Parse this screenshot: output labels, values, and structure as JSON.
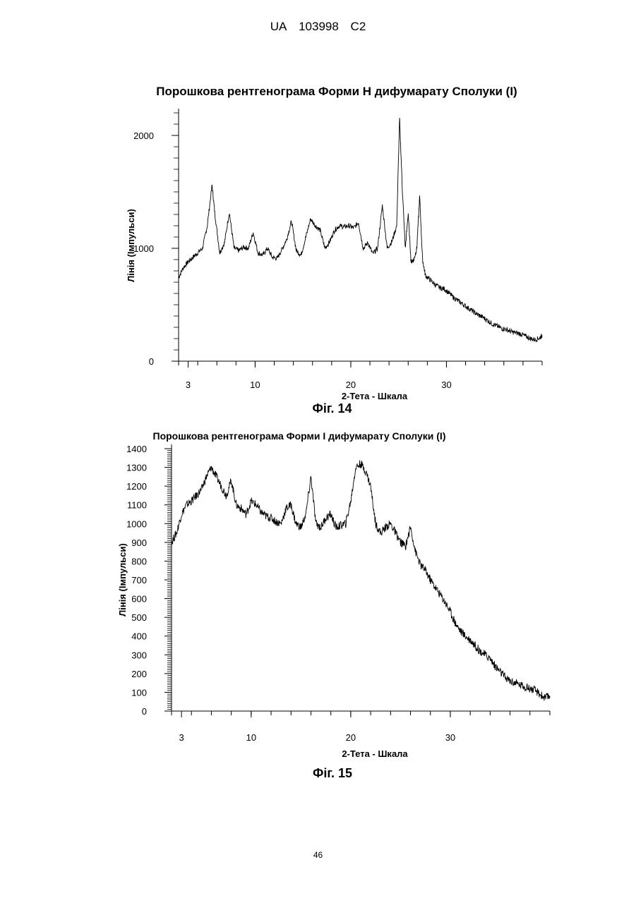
{
  "header": {
    "office": "UA",
    "number": "103998",
    "kind": "C2"
  },
  "page_number": "46",
  "chart_data": [
    {
      "type": "line",
      "title": "Порошкова рентгенограма Форми Н дифумарату Сполуки (І)",
      "xlabel": "2-Тета - Шкала",
      "ylabel": "Лінія (Імпульси)",
      "caption": "Фіг. 14",
      "xlim": [
        2,
        40
      ],
      "ylim": [
        0,
        2200
      ],
      "x_ticks": [
        3,
        10,
        20,
        30
      ],
      "y_ticks": [
        0,
        1000,
        2000
      ],
      "series": [
        {
          "x": [
            2.0,
            2.5,
            3.0,
            3.5,
            4.0,
            4.5,
            5.0,
            5.5,
            5.8,
            6.3,
            6.8,
            7.3,
            7.8,
            8.3,
            8.8,
            9.3,
            9.8,
            10.3,
            10.8,
            11.3,
            11.8,
            12.3,
            12.8,
            13.3,
            13.8,
            14.3,
            14.8,
            15.3,
            15.8,
            16.3,
            16.8,
            17.3,
            17.8,
            18.3,
            18.8,
            19.3,
            19.8,
            20.3,
            20.8,
            21.3,
            21.8,
            22.3,
            22.8,
            23.3,
            23.8,
            24.3,
            24.8,
            25.1,
            25.4,
            25.7,
            26.0,
            26.3,
            26.6,
            26.9,
            27.2,
            27.5,
            27.8,
            28.3,
            28.8,
            29.3,
            29.8,
            30.3,
            30.8,
            31.3,
            31.8,
            32.3,
            32.8,
            33.3,
            33.8,
            34.3,
            34.8,
            35.3,
            35.8,
            36.3,
            36.8,
            37.3,
            37.8,
            38.3,
            38.8,
            39.3,
            39.8,
            40.0
          ],
          "y": [
            740,
            830,
            880,
            920,
            960,
            1000,
            1200,
            1560,
            1300,
            960,
            1050,
            1320,
            1000,
            980,
            1010,
            1000,
            1140,
            960,
            940,
            1000,
            920,
            910,
            990,
            1080,
            1240,
            980,
            940,
            1100,
            1260,
            1200,
            1160,
            1000,
            1060,
            1160,
            1200,
            1190,
            1200,
            1180,
            1230,
            1000,
            1050,
            950,
            1000,
            1380,
            1000,
            1060,
            1200,
            2150,
            1500,
            1000,
            1310,
            880,
            900,
            1000,
            1460,
            900,
            760,
            720,
            680,
            650,
            640,
            600,
            560,
            530,
            500,
            470,
            440,
            410,
            390,
            360,
            330,
            310,
            290,
            280,
            260,
            250,
            240,
            220,
            200,
            190,
            210,
            230
          ]
        }
      ]
    },
    {
      "type": "line",
      "title": "Порошкова рентгенограма Форми І дифумарату Сполуки (І)",
      "xlabel": "2-Тета - Шкала",
      "ylabel": "Лінія (Імпульси)",
      "caption": "Фіг. 15",
      "xlim": [
        2,
        40
      ],
      "ylim": [
        0,
        1400
      ],
      "x_ticks": [
        3,
        10,
        20,
        30
      ],
      "y_ticks": [
        0,
        100,
        200,
        300,
        400,
        500,
        600,
        700,
        800,
        900,
        1000,
        1100,
        1200,
        1300,
        1400
      ],
      "series": [
        {
          "x": [
            2.0,
            2.5,
            3.0,
            3.5,
            4.0,
            4.5,
            5.0,
            5.5,
            6.0,
            6.5,
            7.0,
            7.5,
            8.0,
            8.5,
            9.0,
            9.5,
            10.0,
            10.5,
            11.0,
            11.5,
            12.0,
            12.5,
            13.0,
            13.5,
            14.0,
            14.5,
            15.0,
            15.5,
            16.0,
            16.5,
            17.0,
            17.5,
            18.0,
            18.5,
            19.0,
            19.5,
            20.0,
            20.5,
            21.0,
            21.5,
            22.0,
            22.5,
            23.0,
            23.5,
            24.0,
            24.5,
            25.0,
            25.5,
            26.0,
            26.5,
            27.0,
            27.5,
            28.0,
            28.5,
            29.0,
            29.5,
            30.0,
            30.5,
            31.0,
            31.5,
            32.0,
            32.5,
            33.0,
            33.5,
            34.0,
            34.5,
            35.0,
            35.5,
            36.0,
            36.5,
            37.0,
            37.5,
            38.0,
            38.5,
            39.0,
            39.5,
            40.0
          ],
          "y": [
            900,
            950,
            1050,
            1100,
            1120,
            1150,
            1180,
            1250,
            1300,
            1250,
            1200,
            1150,
            1230,
            1100,
            1080,
            1050,
            1120,
            1100,
            1060,
            1040,
            1030,
            1010,
            1000,
            1080,
            1100,
            1000,
            980,
            1050,
            1250,
            1000,
            980,
            1030,
            1050,
            980,
            990,
            1000,
            1120,
            1300,
            1320,
            1280,
            1200,
            1000,
            950,
            980,
            1000,
            950,
            900,
            880,
            980,
            850,
            780,
            750,
            700,
            660,
            620,
            580,
            530,
            470,
            430,
            400,
            380,
            350,
            320,
            300,
            280,
            240,
            210,
            180,
            160,
            150,
            140,
            130,
            120,
            110,
            90,
            70,
            80
          ]
        }
      ]
    }
  ]
}
